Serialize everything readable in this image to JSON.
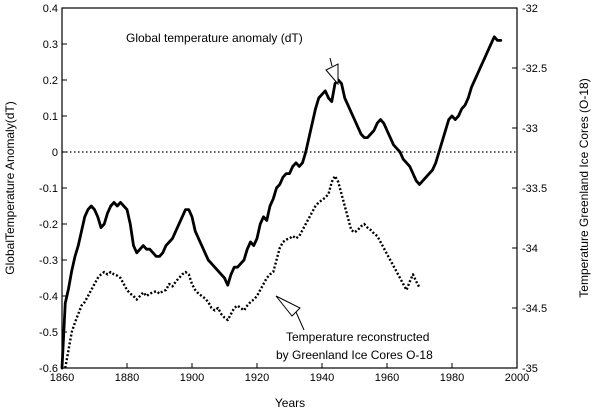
{
  "chart_data": {
    "type": "line",
    "xlabel": "Years",
    "ylabel_left": "GlobalTemperature Anomaly(dT)",
    "ylabel_right": "Temperature Greenland Ice Cores (O-18)",
    "xlim": [
      1860,
      2000
    ],
    "ylim_left": [
      -0.6,
      0.4
    ],
    "ylim_right": [
      -35,
      -32
    ],
    "x_ticks": [
      "1860",
      "1880",
      "1900",
      "1920",
      "1940",
      "1960",
      "1980",
      "2000"
    ],
    "y_ticks_left": [
      "-0.6",
      "-0.5",
      "-0.4",
      "-0.3",
      "-0.2",
      "-0.1",
      "0",
      "0.1",
      "0.2",
      "0.3",
      "0.4"
    ],
    "y_ticks_right": [
      "-35",
      "-34.5",
      "-34",
      "-33.5",
      "-33",
      "-32.5",
      "-32"
    ],
    "zero_line": 0,
    "annotations": [
      {
        "text": "Global  temperature anomaly (dT)"
      },
      {
        "text": "Temperature reconstructed"
      },
      {
        "text": "by Greenland Ice Cores O-18"
      }
    ],
    "series": [
      {
        "axis": "left",
        "style": "solid",
        "points": [
          [
            1860,
            -0.6
          ],
          [
            1861,
            -0.42
          ],
          [
            1862,
            -0.38
          ],
          [
            1863,
            -0.33
          ],
          [
            1864,
            -0.29
          ],
          [
            1865,
            -0.26
          ],
          [
            1866,
            -0.22
          ],
          [
            1867,
            -0.18
          ],
          [
            1868,
            -0.16
          ],
          [
            1869,
            -0.15
          ],
          [
            1870,
            -0.16
          ],
          [
            1871,
            -0.18
          ],
          [
            1872,
            -0.21
          ],
          [
            1873,
            -0.2
          ],
          [
            1874,
            -0.17
          ],
          [
            1875,
            -0.15
          ],
          [
            1876,
            -0.14
          ],
          [
            1877,
            -0.15
          ],
          [
            1878,
            -0.14
          ],
          [
            1879,
            -0.15
          ],
          [
            1880,
            -0.16
          ],
          [
            1881,
            -0.2
          ],
          [
            1882,
            -0.26
          ],
          [
            1883,
            -0.28
          ],
          [
            1884,
            -0.27
          ],
          [
            1885,
            -0.26
          ],
          [
            1886,
            -0.27
          ],
          [
            1887,
            -0.27
          ],
          [
            1888,
            -0.28
          ],
          [
            1889,
            -0.29
          ],
          [
            1890,
            -0.29
          ],
          [
            1891,
            -0.28
          ],
          [
            1892,
            -0.26
          ],
          [
            1893,
            -0.25
          ],
          [
            1894,
            -0.24
          ],
          [
            1895,
            -0.22
          ],
          [
            1896,
            -0.2
          ],
          [
            1897,
            -0.18
          ],
          [
            1898,
            -0.16
          ],
          [
            1899,
            -0.16
          ],
          [
            1900,
            -0.18
          ],
          [
            1901,
            -0.22
          ],
          [
            1902,
            -0.24
          ],
          [
            1903,
            -0.26
          ],
          [
            1904,
            -0.28
          ],
          [
            1905,
            -0.3
          ],
          [
            1906,
            -0.31
          ],
          [
            1907,
            -0.32
          ],
          [
            1908,
            -0.33
          ],
          [
            1909,
            -0.34
          ],
          [
            1910,
            -0.35
          ],
          [
            1911,
            -0.37
          ],
          [
            1912,
            -0.34
          ],
          [
            1913,
            -0.32
          ],
          [
            1914,
            -0.32
          ],
          [
            1915,
            -0.31
          ],
          [
            1916,
            -0.3
          ],
          [
            1917,
            -0.27
          ],
          [
            1918,
            -0.25
          ],
          [
            1919,
            -0.26
          ],
          [
            1920,
            -0.24
          ],
          [
            1921,
            -0.2
          ],
          [
            1922,
            -0.18
          ],
          [
            1923,
            -0.19
          ],
          [
            1924,
            -0.15
          ],
          [
            1925,
            -0.13
          ],
          [
            1926,
            -0.1
          ],
          [
            1927,
            -0.09
          ],
          [
            1928,
            -0.07
          ],
          [
            1929,
            -0.06
          ],
          [
            1930,
            -0.06
          ],
          [
            1931,
            -0.04
          ],
          [
            1932,
            -0.03
          ],
          [
            1933,
            -0.04
          ],
          [
            1934,
            -0.03
          ],
          [
            1935,
            0.0
          ],
          [
            1936,
            0.04
          ],
          [
            1937,
            0.08
          ],
          [
            1938,
            0.12
          ],
          [
            1939,
            0.15
          ],
          [
            1940,
            0.16
          ],
          [
            1941,
            0.17
          ],
          [
            1942,
            0.15
          ],
          [
            1943,
            0.14
          ],
          [
            1944,
            0.19
          ],
          [
            1945,
            0.2
          ],
          [
            1946,
            0.19
          ],
          [
            1947,
            0.15
          ],
          [
            1948,
            0.13
          ],
          [
            1949,
            0.11
          ],
          [
            1950,
            0.09
          ],
          [
            1951,
            0.07
          ],
          [
            1952,
            0.05
          ],
          [
            1953,
            0.04
          ],
          [
            1954,
            0.04
          ],
          [
            1955,
            0.05
          ],
          [
            1956,
            0.06
          ],
          [
            1957,
            0.08
          ],
          [
            1958,
            0.09
          ],
          [
            1959,
            0.08
          ],
          [
            1960,
            0.06
          ],
          [
            1961,
            0.04
          ],
          [
            1962,
            0.02
          ],
          [
            1963,
            0.01
          ],
          [
            1964,
            0.0
          ],
          [
            1965,
            -0.02
          ],
          [
            1966,
            -0.03
          ],
          [
            1967,
            -0.04
          ],
          [
            1968,
            -0.06
          ],
          [
            1969,
            -0.08
          ],
          [
            1970,
            -0.09
          ],
          [
            1971,
            -0.08
          ],
          [
            1972,
            -0.07
          ],
          [
            1973,
            -0.06
          ],
          [
            1974,
            -0.05
          ],
          [
            1975,
            -0.03
          ],
          [
            1976,
            0.0
          ],
          [
            1977,
            0.03
          ],
          [
            1978,
            0.06
          ],
          [
            1979,
            0.09
          ],
          [
            1980,
            0.1
          ],
          [
            1981,
            0.09
          ],
          [
            1982,
            0.1
          ],
          [
            1983,
            0.12
          ],
          [
            1984,
            0.13
          ],
          [
            1985,
            0.15
          ],
          [
            1986,
            0.18
          ],
          [
            1987,
            0.2
          ],
          [
            1988,
            0.22
          ],
          [
            1989,
            0.24
          ],
          [
            1990,
            0.26
          ],
          [
            1991,
            0.28
          ],
          [
            1992,
            0.3
          ],
          [
            1993,
            0.32
          ],
          [
            1994,
            0.31
          ],
          [
            1995,
            0.31
          ]
        ]
      },
      {
        "axis": "right",
        "style": "dotted",
        "points": [
          [
            1861,
            -35.0
          ],
          [
            1862,
            -34.85
          ],
          [
            1863,
            -34.7
          ],
          [
            1864,
            -34.62
          ],
          [
            1865,
            -34.55
          ],
          [
            1866,
            -34.48
          ],
          [
            1867,
            -34.45
          ],
          [
            1868,
            -34.4
          ],
          [
            1869,
            -34.35
          ],
          [
            1870,
            -34.3
          ],
          [
            1871,
            -34.25
          ],
          [
            1872,
            -34.22
          ],
          [
            1873,
            -34.2
          ],
          [
            1874,
            -34.22
          ],
          [
            1875,
            -34.2
          ],
          [
            1876,
            -34.22
          ],
          [
            1877,
            -34.23
          ],
          [
            1878,
            -34.25
          ],
          [
            1879,
            -34.3
          ],
          [
            1880,
            -34.35
          ],
          [
            1881,
            -34.38
          ],
          [
            1882,
            -34.4
          ],
          [
            1883,
            -34.43
          ],
          [
            1884,
            -34.4
          ],
          [
            1885,
            -34.37
          ],
          [
            1886,
            -34.4
          ],
          [
            1887,
            -34.38
          ],
          [
            1888,
            -34.37
          ],
          [
            1889,
            -34.36
          ],
          [
            1890,
            -34.38
          ],
          [
            1891,
            -34.36
          ],
          [
            1892,
            -34.35
          ],
          [
            1893,
            -34.3
          ],
          [
            1894,
            -34.32
          ],
          [
            1895,
            -34.28
          ],
          [
            1896,
            -34.25
          ],
          [
            1897,
            -34.22
          ],
          [
            1898,
            -34.2
          ],
          [
            1899,
            -34.22
          ],
          [
            1900,
            -34.3
          ],
          [
            1901,
            -34.35
          ],
          [
            1902,
            -34.38
          ],
          [
            1903,
            -34.4
          ],
          [
            1904,
            -34.42
          ],
          [
            1905,
            -34.45
          ],
          [
            1906,
            -34.5
          ],
          [
            1907,
            -34.52
          ],
          [
            1908,
            -34.5
          ],
          [
            1909,
            -34.55
          ],
          [
            1910,
            -34.58
          ],
          [
            1911,
            -34.6
          ],
          [
            1912,
            -34.55
          ],
          [
            1913,
            -34.5
          ],
          [
            1914,
            -34.48
          ],
          [
            1915,
            -34.5
          ],
          [
            1916,
            -34.52
          ],
          [
            1917,
            -34.48
          ],
          [
            1918,
            -34.45
          ],
          [
            1919,
            -34.43
          ],
          [
            1920,
            -34.4
          ],
          [
            1921,
            -34.35
          ],
          [
            1922,
            -34.3
          ],
          [
            1923,
            -34.25
          ],
          [
            1924,
            -34.22
          ],
          [
            1925,
            -34.2
          ],
          [
            1926,
            -34.1
          ],
          [
            1927,
            -34.0
          ],
          [
            1928,
            -33.95
          ],
          [
            1929,
            -33.93
          ],
          [
            1930,
            -33.92
          ],
          [
            1931,
            -33.9
          ],
          [
            1932,
            -33.92
          ],
          [
            1933,
            -33.9
          ],
          [
            1934,
            -33.85
          ],
          [
            1935,
            -33.8
          ],
          [
            1936,
            -33.75
          ],
          [
            1937,
            -33.7
          ],
          [
            1938,
            -33.65
          ],
          [
            1939,
            -33.62
          ],
          [
            1940,
            -33.6
          ],
          [
            1941,
            -33.58
          ],
          [
            1942,
            -33.55
          ],
          [
            1943,
            -33.45
          ],
          [
            1944,
            -33.4
          ],
          [
            1945,
            -33.45
          ],
          [
            1946,
            -33.55
          ],
          [
            1947,
            -33.65
          ],
          [
            1948,
            -33.75
          ],
          [
            1949,
            -33.85
          ],
          [
            1950,
            -33.87
          ],
          [
            1951,
            -33.85
          ],
          [
            1952,
            -33.82
          ],
          [
            1953,
            -33.8
          ],
          [
            1954,
            -33.83
          ],
          [
            1955,
            -33.85
          ],
          [
            1956,
            -33.88
          ],
          [
            1957,
            -33.9
          ],
          [
            1958,
            -33.95
          ],
          [
            1959,
            -34.0
          ],
          [
            1960,
            -34.05
          ],
          [
            1961,
            -34.1
          ],
          [
            1962,
            -34.15
          ],
          [
            1963,
            -34.2
          ],
          [
            1964,
            -34.25
          ],
          [
            1965,
            -34.3
          ],
          [
            1966,
            -34.35
          ],
          [
            1967,
            -34.28
          ],
          [
            1968,
            -34.22
          ],
          [
            1969,
            -34.28
          ],
          [
            1970,
            -34.33
          ]
        ]
      }
    ]
  }
}
